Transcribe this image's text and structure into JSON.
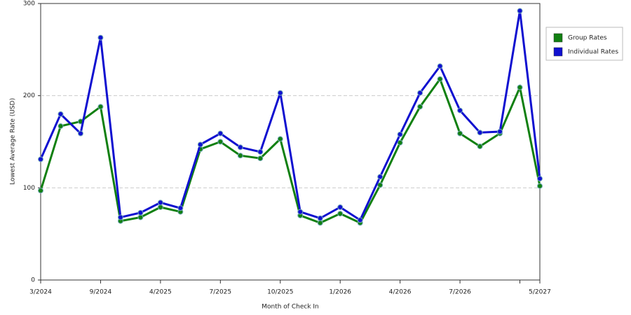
{
  "chart_data": {
    "type": "line",
    "x_label": "Month of Check In",
    "y_label": "Lowest Average Rate (USD)",
    "categories": [
      "3/2024",
      null,
      null,
      "9/2024",
      null,
      null,
      "4/2025",
      null,
      null,
      "7/2025",
      null,
      null,
      "10/2025",
      null,
      null,
      "1/2026",
      null,
      null,
      "4/2026",
      null,
      null,
      "7/2026",
      null,
      null,
      null,
      "5/2027"
    ],
    "series": [
      {
        "name": "Group Rates",
        "color": "#118011",
        "values": [
          97,
          167,
          172,
          188,
          64,
          68,
          79,
          74,
          142,
          150,
          135,
          132,
          153,
          70,
          62,
          72,
          62,
          103,
          149,
          188,
          218,
          159,
          145,
          159,
          209,
          102
        ]
      },
      {
        "name": "Individual Rates",
        "color": "#1010d0",
        "values": [
          131,
          180,
          159,
          263,
          68,
          73,
          84,
          78,
          147,
          159,
          144,
          139,
          203,
          74,
          67,
          79,
          65,
          112,
          158,
          203,
          232,
          184,
          160,
          161,
          292,
          110
        ]
      }
    ],
    "ylim": [
      0,
      300
    ],
    "yticks": [
      0,
      100,
      200,
      300
    ],
    "grid": true,
    "legend": "right"
  }
}
